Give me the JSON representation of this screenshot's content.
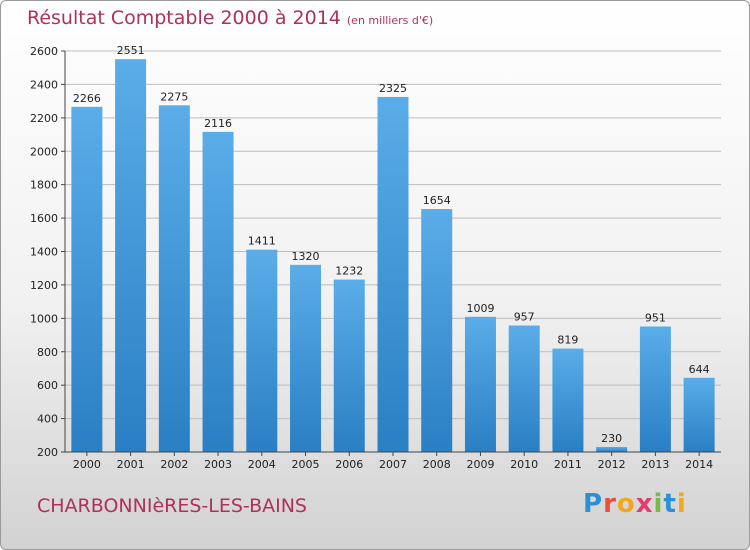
{
  "title": "Résultat Comptable 2000 à 2014",
  "subtitle": "(en milliers d'€)",
  "town": "CHARBONNIèRES-LES-BAINS",
  "logo": {
    "letters": [
      "P",
      "r",
      "o",
      "x",
      "i",
      "t",
      "i"
    ],
    "colors": [
      "#2b8fd6",
      "#e94e3a",
      "#f2a81d",
      "#e73b6b",
      "#7cb84a",
      "#2b8fd6",
      "#f2a81d"
    ]
  },
  "colors": {
    "bar_top": "#5aade8",
    "bar_bottom": "#2a7fc4",
    "grid": "#bdbdbd"
  },
  "chart_data": {
    "type": "bar",
    "categories": [
      "2000",
      "2001",
      "2002",
      "2003",
      "2004",
      "2005",
      "2006",
      "2007",
      "2008",
      "2009",
      "2010",
      "2011",
      "2012",
      "2013",
      "2014"
    ],
    "values": [
      2266,
      2551,
      2275,
      2116,
      1411,
      1320,
      1232,
      2325,
      1654,
      1009,
      957,
      819,
      230,
      951,
      644
    ],
    "ylim": [
      200,
      2600
    ],
    "yticks": [
      "200",
      "400",
      "600",
      "800",
      "1000",
      "1200",
      "1400",
      "1600",
      "1800",
      "2000",
      "2200",
      "2400",
      "2600"
    ],
    "grid": true
  }
}
